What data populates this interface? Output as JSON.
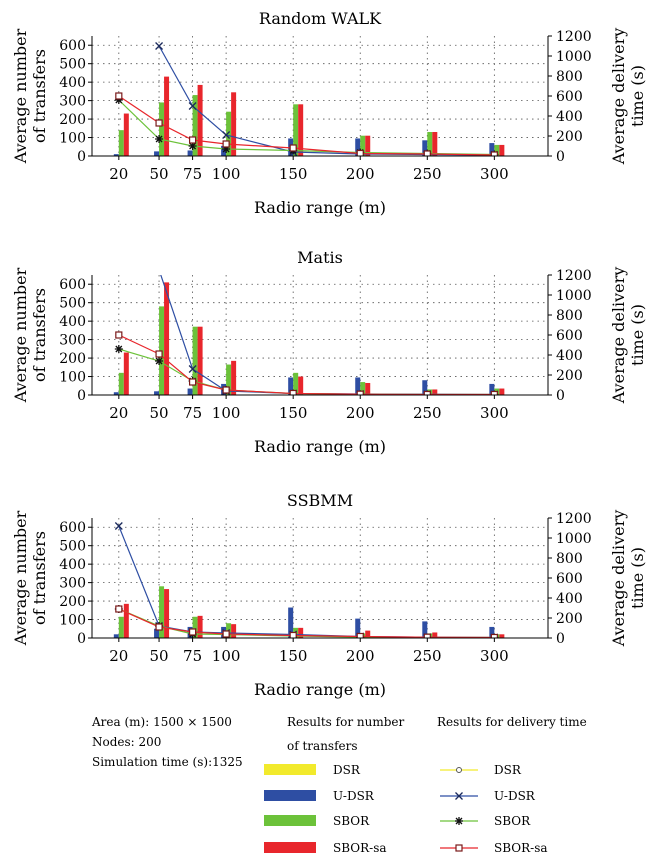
{
  "colors": {
    "DSR": "#f2ea2c",
    "U-DSR": "#2e4ea3",
    "SBOR": "#6cc23a",
    "SBOR-sa": "#e8262c",
    "grid": "#555555"
  },
  "chart_data": [
    {
      "type": "bar",
      "title": "Random WALK",
      "xlabel": "Radio range (m)",
      "ylabel_left": [
        "Average number",
        "of transfers"
      ],
      "ylabel_right": [
        "Average delivery",
        "time (s)"
      ],
      "x": [
        20,
        50,
        75,
        100,
        150,
        200,
        250,
        300
      ],
      "xlim": [
        0,
        340
      ],
      "ylim_left": [
        0,
        650
      ],
      "ylim_right": [
        0,
        1200
      ],
      "yticks_left": [
        0,
        100,
        200,
        300,
        400,
        500,
        600
      ],
      "yticks_right": [
        0,
        200,
        400,
        600,
        800,
        1000,
        1200
      ],
      "grid": true,
      "bar_series": [
        {
          "name": "DSR",
          "values": [
            0,
            0,
            0,
            0,
            0,
            0,
            0,
            0
          ]
        },
        {
          "name": "U-DSR",
          "values": [
            10,
            25,
            30,
            55,
            95,
            95,
            85,
            70
          ]
        },
        {
          "name": "SBOR",
          "values": [
            140,
            290,
            330,
            240,
            280,
            110,
            130,
            60
          ]
        },
        {
          "name": "SBOR-sa",
          "values": [
            230,
            430,
            385,
            345,
            280,
            110,
            130,
            60
          ]
        }
      ],
      "line_series": [
        {
          "name": "DSR",
          "values": [
            null,
            null,
            null,
            null,
            null,
            null,
            null,
            null
          ]
        },
        {
          "name": "U-DSR",
          "values": [
            null,
            1100,
            500,
            210,
            40,
            20,
            15,
            10
          ]
        },
        {
          "name": "SBOR",
          "values": [
            560,
            170,
            100,
            70,
            55,
            35,
            25,
            15
          ]
        },
        {
          "name": "SBOR-sa",
          "values": [
            600,
            330,
            160,
            120,
            80,
            25,
            20,
            10
          ]
        }
      ]
    },
    {
      "type": "bar",
      "title": "Matis",
      "xlabel": "Radio range (m)",
      "ylabel_left": [
        "Average number",
        "of transfers"
      ],
      "ylabel_right": [
        "Average delivery",
        "time (s)"
      ],
      "x": [
        20,
        50,
        75,
        100,
        150,
        200,
        250,
        300
      ],
      "xlim": [
        0,
        340
      ],
      "ylim_left": [
        0,
        650
      ],
      "ylim_right": [
        0,
        1200
      ],
      "yticks_left": [
        0,
        100,
        200,
        300,
        400,
        500,
        600
      ],
      "yticks_right": [
        0,
        200,
        400,
        600,
        800,
        1000,
        1200
      ],
      "grid": true,
      "bar_series": [
        {
          "name": "DSR",
          "values": [
            0,
            0,
            0,
            0,
            0,
            0,
            0,
            0
          ]
        },
        {
          "name": "U-DSR",
          "values": [
            15,
            20,
            35,
            60,
            95,
            95,
            80,
            60
          ]
        },
        {
          "name": "SBOR",
          "values": [
            120,
            480,
            370,
            165,
            120,
            70,
            30,
            35
          ]
        },
        {
          "name": "SBOR-sa",
          "values": [
            230,
            610,
            370,
            185,
            100,
            65,
            30,
            35
          ]
        }
      ],
      "line_series": [
        {
          "name": "DSR",
          "values": [
            null,
            null,
            null,
            null,
            null,
            null,
            null,
            null
          ]
        },
        {
          "name": "U-DSR",
          "values": [
            null,
            1250,
            260,
            40,
            15,
            10,
            8,
            5
          ]
        },
        {
          "name": "SBOR",
          "values": [
            460,
            340,
            140,
            50,
            15,
            8,
            5,
            5
          ]
        },
        {
          "name": "SBOR-sa",
          "values": [
            600,
            410,
            130,
            50,
            15,
            8,
            5,
            5
          ]
        }
      ]
    },
    {
      "type": "bar",
      "title": "SSBMM",
      "xlabel": "Radio range (m)",
      "ylabel_left": [
        "Average number",
        "of transfers"
      ],
      "ylabel_right": [
        "Average delivery",
        "time (s)"
      ],
      "x": [
        20,
        50,
        75,
        100,
        150,
        200,
        250,
        300
      ],
      "xlim": [
        0,
        340
      ],
      "ylim_left": [
        0,
        650
      ],
      "ylim_right": [
        0,
        1200
      ],
      "yticks_left": [
        0,
        100,
        200,
        300,
        400,
        500,
        600
      ],
      "yticks_right": [
        0,
        200,
        400,
        600,
        800,
        1000,
        1200
      ],
      "grid": true,
      "bar_series": [
        {
          "name": "DSR",
          "values": [
            0,
            0,
            0,
            0,
            0,
            0,
            0,
            0
          ]
        },
        {
          "name": "U-DSR",
          "values": [
            20,
            50,
            60,
            60,
            165,
            105,
            90,
            60
          ]
        },
        {
          "name": "SBOR",
          "values": [
            115,
            280,
            115,
            80,
            55,
            25,
            25,
            20
          ]
        },
        {
          "name": "SBOR-sa",
          "values": [
            185,
            265,
            120,
            75,
            55,
            40,
            30,
            20
          ]
        }
      ],
      "line_series": [
        {
          "name": "DSR",
          "values": [
            null,
            null,
            null,
            null,
            null,
            null,
            null,
            null
          ]
        },
        {
          "name": "U-DSR",
          "values": [
            1120,
            120,
            60,
            50,
            35,
            15,
            8,
            5
          ]
        },
        {
          "name": "SBOR",
          "values": [
            290,
            120,
            40,
            35,
            20,
            10,
            5,
            5
          ]
        },
        {
          "name": "SBOR-sa",
          "values": [
            290,
            110,
            60,
            40,
            25,
            15,
            8,
            5
          ]
        }
      ]
    }
  ],
  "legend": {
    "info": [
      "Area (m): 1500 × 1500",
      "Nodes: 200",
      "Simulation time (s):1325"
    ],
    "bars_title": [
      "Results for number",
      "of transfers"
    ],
    "lines_title": "Results for delivery time",
    "bar_entries": [
      "DSR",
      "U-DSR",
      "SBOR",
      "SBOR-sa"
    ],
    "line_entries": [
      "DSR",
      "U-DSR",
      "SBOR",
      "SBOR-sa"
    ]
  }
}
